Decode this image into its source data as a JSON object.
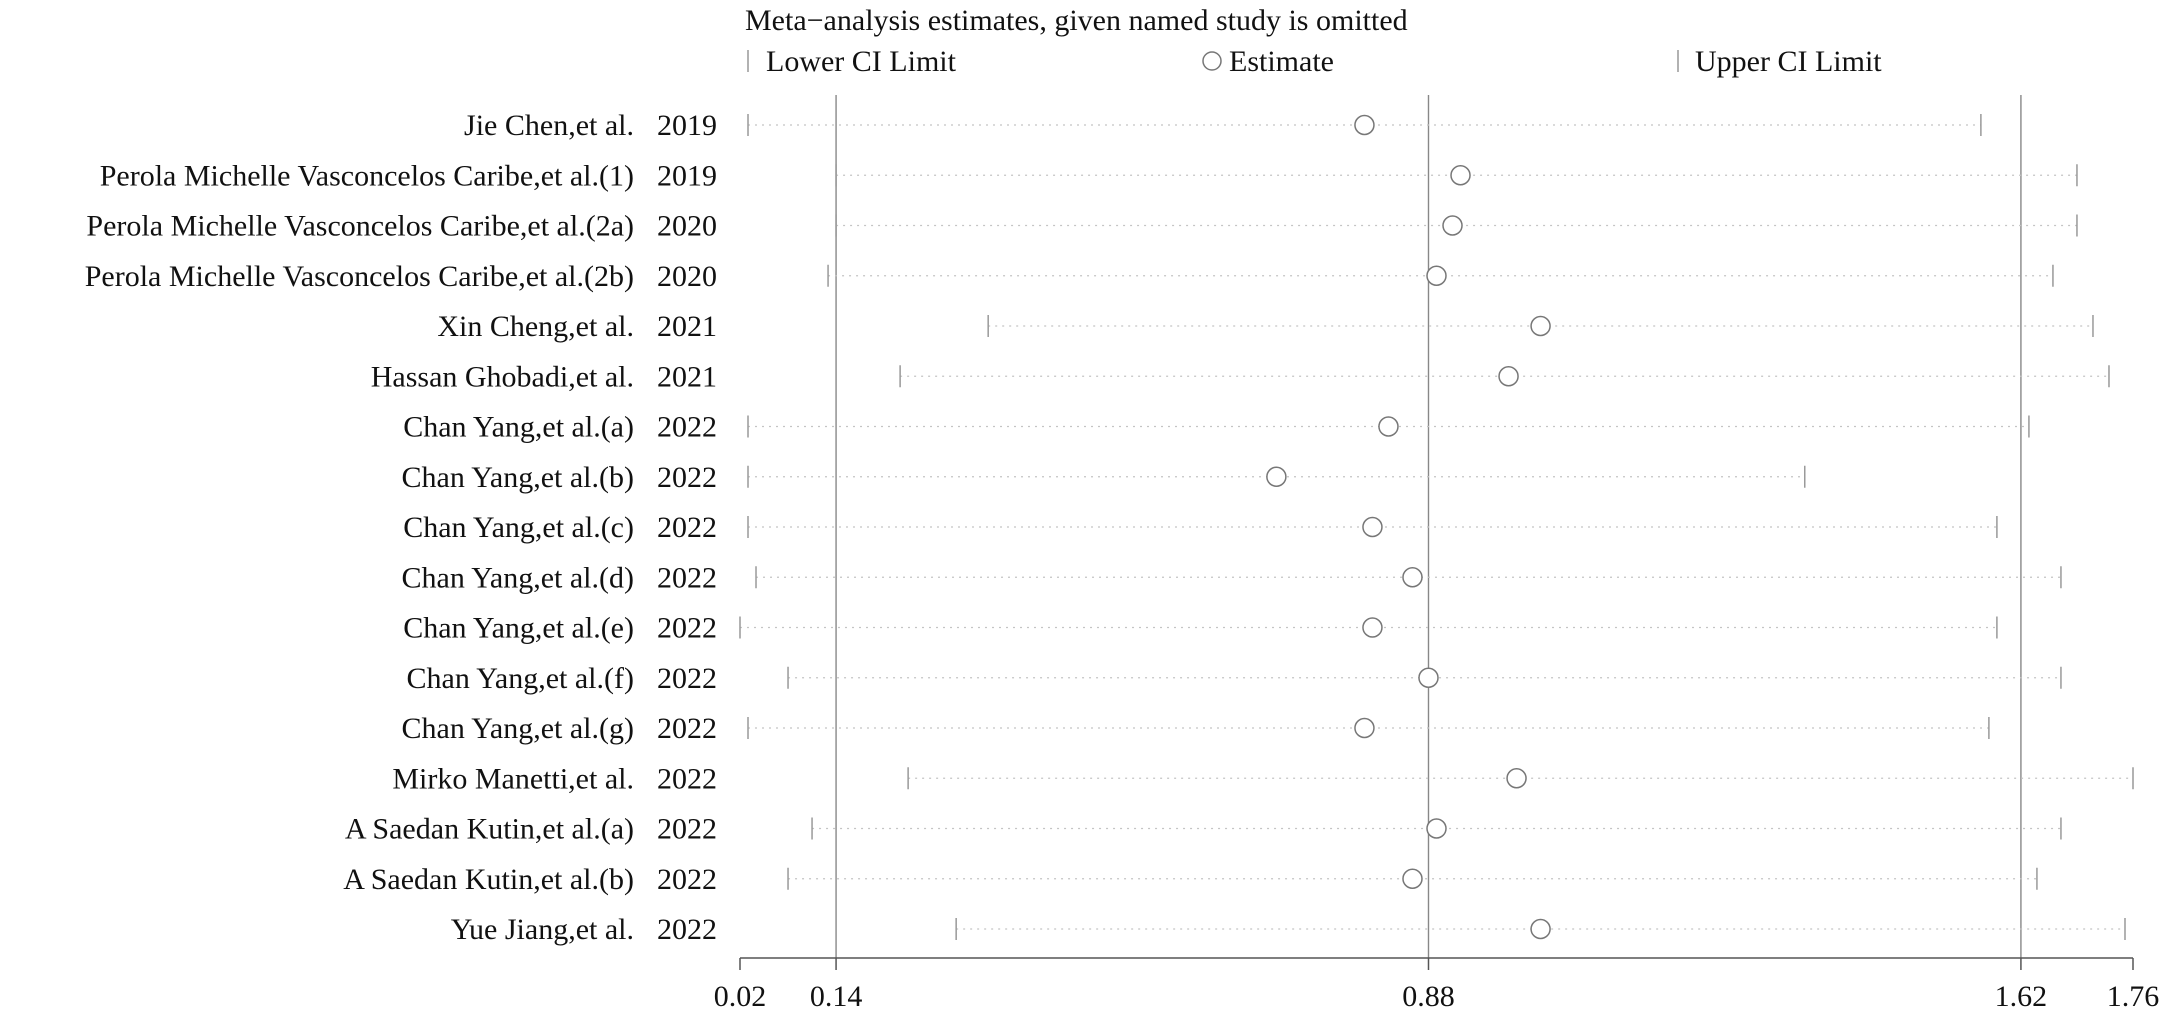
{
  "chart_data": {
    "type": "scatter",
    "title": "Meta−analysis estimates, given named study is omitted",
    "legend": {
      "placement": "top",
      "items": [
        {
          "label": "Lower CI Limit",
          "marker": "tick"
        },
        {
          "label": "Estimate",
          "marker": "circle"
        },
        {
          "label": "Upper CI Limit",
          "marker": "tick"
        }
      ]
    },
    "xlim": [
      0.02,
      1.76
    ],
    "xticks": [
      0.02,
      0.14,
      0.88,
      1.62,
      1.76
    ],
    "xtick_labels": [
      "0.02",
      "0.14",
      "0.88",
      "1.62",
      "1.76"
    ],
    "reference_lines": [
      0.14,
      0.88,
      1.62
    ],
    "studies": [
      {
        "name": "Jie Chen,et al.",
        "year": "2019",
        "lower": 0.03,
        "estimate": 0.8,
        "upper": 1.57
      },
      {
        "name": "Perola Michelle Vasconcelos Caribe,et al.(1)",
        "year": "2019",
        "lower": 0.14,
        "estimate": 0.92,
        "upper": 1.69
      },
      {
        "name": "Perola Michelle Vasconcelos Caribe,et al.(2a)",
        "year": "2020",
        "lower": 0.14,
        "estimate": 0.91,
        "upper": 1.69
      },
      {
        "name": "Perola Michelle Vasconcelos Caribe,et al.(2b)",
        "year": "2020",
        "lower": 0.13,
        "estimate": 0.89,
        "upper": 1.66
      },
      {
        "name": "Xin Cheng,et al.",
        "year": "2021",
        "lower": 0.33,
        "estimate": 1.02,
        "upper": 1.71
      },
      {
        "name": "Hassan Ghobadi,et al.",
        "year": "2021",
        "lower": 0.22,
        "estimate": 0.98,
        "upper": 1.73
      },
      {
        "name": "Chan Yang,et al.(a)",
        "year": "2022",
        "lower": 0.03,
        "estimate": 0.83,
        "upper": 1.63
      },
      {
        "name": "Chan Yang,et al.(b)",
        "year": "2022",
        "lower": 0.03,
        "estimate": 0.69,
        "upper": 1.35
      },
      {
        "name": "Chan Yang,et al.(c)",
        "year": "2022",
        "lower": 0.03,
        "estimate": 0.81,
        "upper": 1.59
      },
      {
        "name": "Chan Yang,et al.(d)",
        "year": "2022",
        "lower": 0.04,
        "estimate": 0.86,
        "upper": 1.67
      },
      {
        "name": "Chan Yang,et al.(e)",
        "year": "2022",
        "lower": 0.02,
        "estimate": 0.81,
        "upper": 1.59
      },
      {
        "name": "Chan Yang,et al.(f)",
        "year": "2022",
        "lower": 0.08,
        "estimate": 0.88,
        "upper": 1.67
      },
      {
        "name": "Chan Yang,et al.(g)",
        "year": "2022",
        "lower": 0.03,
        "estimate": 0.8,
        "upper": 1.58
      },
      {
        "name": "Mirko Manetti,et al.",
        "year": "2022",
        "lower": 0.23,
        "estimate": 0.99,
        "upper": 1.76
      },
      {
        "name": "A Saedan Kutin,et al.(a)",
        "year": "2022",
        "lower": 0.11,
        "estimate": 0.89,
        "upper": 1.67
      },
      {
        "name": "A Saedan Kutin,et al.(b)",
        "year": "2022",
        "lower": 0.08,
        "estimate": 0.86,
        "upper": 1.64
      },
      {
        "name": "Yue Jiang,et al.",
        "year": "2022",
        "lower": 0.29,
        "estimate": 1.02,
        "upper": 1.75
      }
    ]
  }
}
